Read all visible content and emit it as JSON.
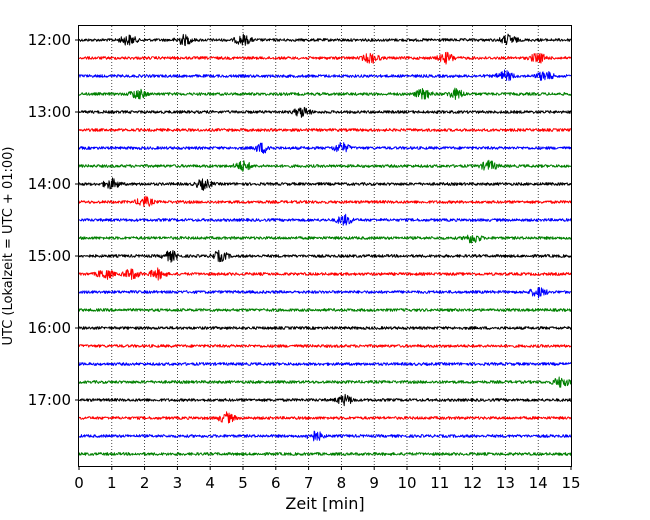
{
  "chart_data": {
    "type": "seismic-helicorder",
    "xlabel": "Zeit  [min]",
    "ylabel": "UTC (Lokalzeit = UTC + 01:00)",
    "x_range": [
      0,
      15
    ],
    "x_ticks": [
      0,
      1,
      2,
      3,
      4,
      5,
      6,
      7,
      8,
      9,
      10,
      11,
      12,
      13,
      14,
      15
    ],
    "x_grid": "dotted vertical lines at each minute",
    "y_tick_labels": [
      "12:00",
      "13:00",
      "14:00",
      "15:00",
      "16:00",
      "17:00"
    ],
    "trace_interval_minutes": 15,
    "trace_colors": [
      "#000000",
      "#ff0000",
      "#0000ff",
      "#008000"
    ],
    "traces": [
      {
        "start": "12:00",
        "color": "#000000",
        "bursts_at_min": [
          1.5,
          3.2,
          5.0,
          13.1
        ]
      },
      {
        "start": "12:15",
        "color": "#ff0000",
        "bursts_at_min": [
          8.9,
          11.2,
          14.0
        ]
      },
      {
        "start": "12:30",
        "color": "#0000ff",
        "bursts_at_min": [
          13.0,
          14.2
        ]
      },
      {
        "start": "12:45",
        "color": "#008000",
        "bursts_at_min": [
          1.8,
          10.5,
          11.5
        ]
      },
      {
        "start": "13:00",
        "color": "#000000",
        "bursts_at_min": [
          6.8
        ]
      },
      {
        "start": "13:15",
        "color": "#ff0000",
        "bursts_at_min": []
      },
      {
        "start": "13:30",
        "color": "#0000ff",
        "bursts_at_min": [
          5.6,
          8.0
        ]
      },
      {
        "start": "13:45",
        "color": "#008000",
        "bursts_at_min": [
          5.0,
          12.5
        ]
      },
      {
        "start": "14:00",
        "color": "#000000",
        "bursts_at_min": [
          1.0,
          3.8
        ]
      },
      {
        "start": "14:15",
        "color": "#ff0000",
        "bursts_at_min": [
          2.0
        ]
      },
      {
        "start": "14:30",
        "color": "#0000ff",
        "bursts_at_min": [
          8.1
        ]
      },
      {
        "start": "14:45",
        "color": "#008000",
        "bursts_at_min": [
          12.0
        ]
      },
      {
        "start": "15:00",
        "color": "#000000",
        "bursts_at_min": [
          2.8,
          4.3
        ]
      },
      {
        "start": "15:15",
        "color": "#ff0000",
        "bursts_at_min": [
          0.8,
          1.6,
          2.4
        ]
      },
      {
        "start": "15:30",
        "color": "#0000ff",
        "bursts_at_min": [
          14.0
        ]
      },
      {
        "start": "15:45",
        "color": "#008000",
        "bursts_at_min": []
      },
      {
        "start": "16:00",
        "color": "#000000",
        "bursts_at_min": []
      },
      {
        "start": "16:15",
        "color": "#ff0000",
        "bursts_at_min": []
      },
      {
        "start": "16:30",
        "color": "#0000ff",
        "bursts_at_min": []
      },
      {
        "start": "16:45",
        "color": "#008000",
        "bursts_at_min": [
          14.7
        ]
      },
      {
        "start": "17:00",
        "color": "#000000",
        "bursts_at_min": [
          8.1
        ]
      },
      {
        "start": "17:15",
        "color": "#ff0000",
        "bursts_at_min": [
          4.5
        ]
      },
      {
        "start": "17:30",
        "color": "#0000ff",
        "bursts_at_min": [
          7.2
        ]
      },
      {
        "start": "17:45",
        "color": "#008000",
        "bursts_at_min": []
      }
    ]
  }
}
